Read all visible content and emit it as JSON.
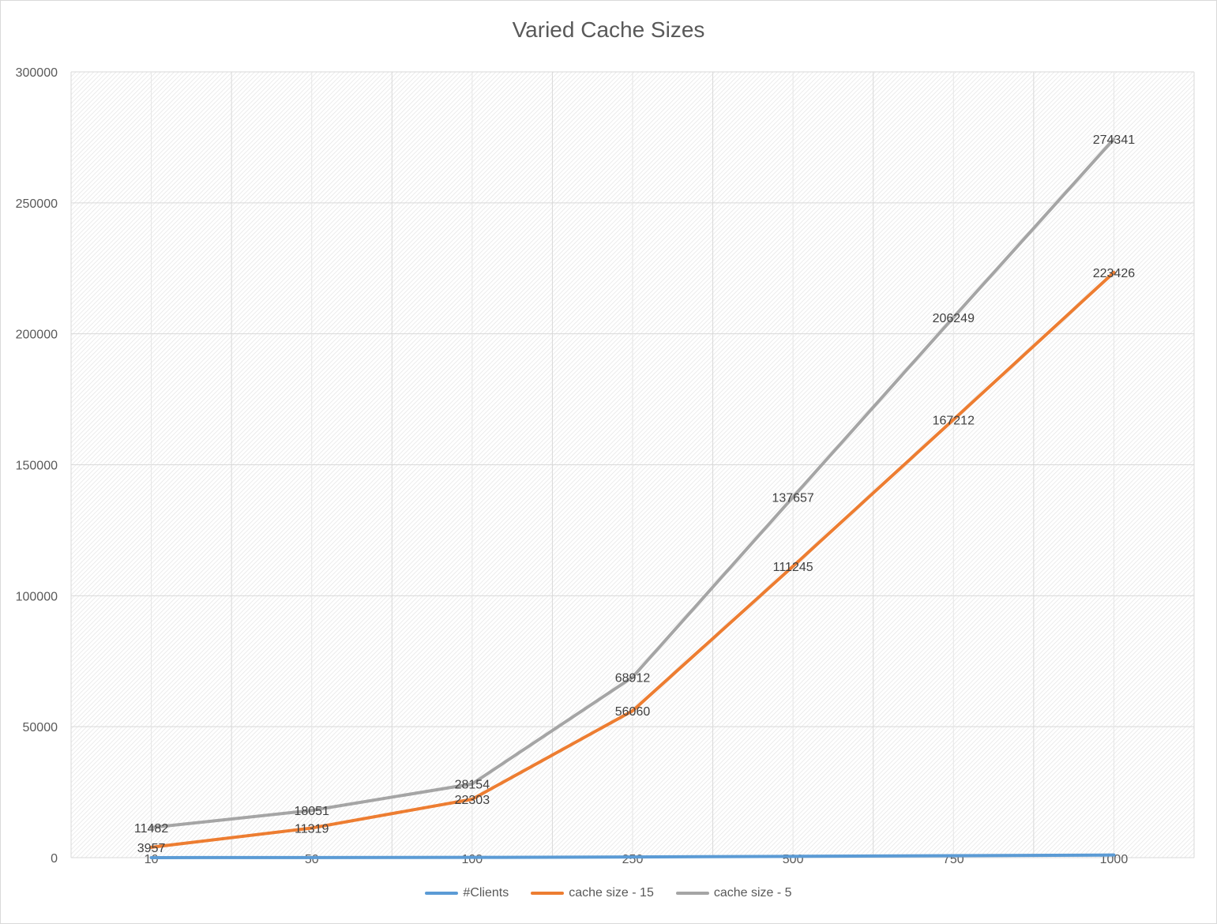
{
  "chart_data": {
    "type": "line",
    "title": "Varied Cache Sizes",
    "categories": [
      "10",
      "50",
      "100",
      "250",
      "500",
      "750",
      "1000"
    ],
    "ylim": [
      0,
      300000
    ],
    "yticks": [
      0,
      50000,
      100000,
      150000,
      200000,
      250000,
      300000
    ],
    "grid": true,
    "legend_position": "bottom",
    "series": [
      {
        "name": "#Clients",
        "color": "#5b9bd5",
        "values": [
          10,
          50,
          100,
          250,
          500,
          750,
          1000
        ],
        "show_labels": false
      },
      {
        "name": "cache size - 15",
        "color": "#ed7d31",
        "values": [
          3957,
          11319,
          22303,
          56060,
          111245,
          167212,
          223426
        ],
        "show_labels": true
      },
      {
        "name": "cache size - 5",
        "color": "#a5a5a5",
        "values": [
          11482,
          18051,
          28154,
          68912,
          137657,
          206249,
          274341
        ],
        "show_labels": true
      }
    ]
  }
}
